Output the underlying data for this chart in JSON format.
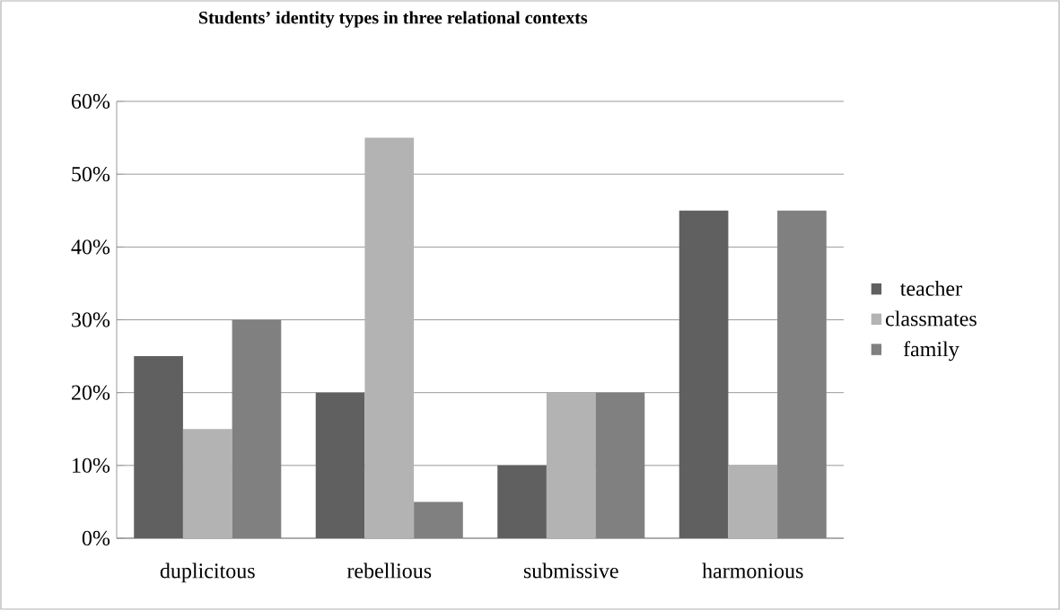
{
  "chart_data": {
    "type": "bar",
    "title": "Students’ identity types in three relational contexts",
    "categories": [
      "duplicitous",
      "rebellious",
      "submissive",
      "harmonious"
    ],
    "series": [
      {
        "name": "teacher",
        "color": "#606060",
        "values": [
          25,
          20,
          10,
          45
        ]
      },
      {
        "name": "classmates",
        "color": "#b3b3b3",
        "values": [
          15,
          55,
          20,
          10
        ]
      },
      {
        "name": "family",
        "color": "#808080",
        "values": [
          30,
          5,
          20,
          45
        ]
      }
    ],
    "ylim": [
      0,
      60
    ],
    "yticks": [
      {
        "value": 0,
        "label": "0%"
      },
      {
        "value": 10,
        "label": "10%"
      },
      {
        "value": 20,
        "label": "20%"
      },
      {
        "value": 30,
        "label": "30%"
      },
      {
        "value": 40,
        "label": "40%"
      },
      {
        "value": 50,
        "label": "50%"
      },
      {
        "value": 60,
        "label": "60%"
      }
    ],
    "grid": "y",
    "legend": "right"
  }
}
